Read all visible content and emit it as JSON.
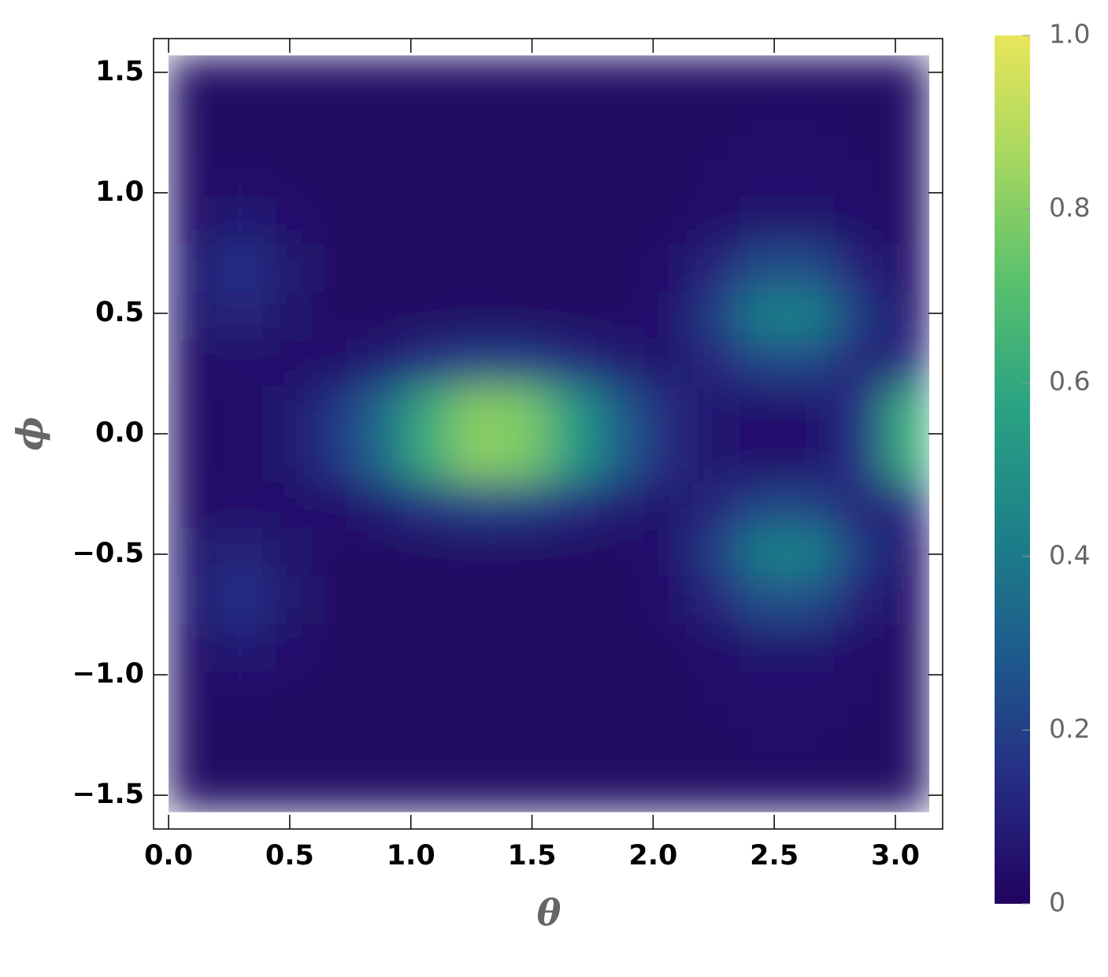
{
  "chart_data": {
    "type": "heatmap",
    "xlabel": "θ",
    "ylabel": "ϕ",
    "xlim": [
      -0.062,
      3.195
    ],
    "ylim": [
      -1.64,
      1.64
    ],
    "xticks": [
      {
        "value": 0,
        "label": "0.0"
      },
      0.5,
      {
        "value": 1,
        "label": "1.0"
      },
      1.5,
      {
        "value": 2,
        "label": "2.0"
      },
      2.5,
      {
        "value": 3,
        "label": "3.0"
      }
    ],
    "yticks": [
      {
        "value": -1.5,
        "label": "−1.5"
      },
      {
        "value": -1,
        "label": "−1.0"
      },
      {
        "value": -0.5,
        "label": "−0.5"
      },
      {
        "value": 0,
        "label": "0.0"
      },
      0.5,
      {
        "value": 1,
        "label": "1.0"
      },
      1.5
    ],
    "xbins": [
      0,
      0.2,
      0.39,
      0.59,
      0.79,
      0.98,
      1.18,
      1.37,
      1.57,
      1.77,
      1.96,
      2.16,
      2.36,
      2.55,
      2.75,
      2.95,
      3.14
    ],
    "ybins": [
      -1.57,
      -1.37,
      -1.18,
      -0.98,
      -0.79,
      -0.59,
      -0.39,
      -0.2,
      0,
      0.2,
      0.39,
      0.59,
      0.79,
      0.98,
      1.18,
      1.37,
      1.57
    ],
    "z": [
      [
        0.02,
        0.02,
        0.02,
        0.02,
        0.02,
        0.02,
        0.02,
        0.02,
        0.02,
        0.02,
        0.02,
        0.02,
        0.02,
        0.02,
        0.02,
        0.02
      ],
      [
        0.02,
        0.02,
        0.02,
        0.02,
        0.02,
        0.02,
        0.02,
        0.02,
        0.02,
        0.02,
        0.02,
        0.02,
        0.03,
        0.03,
        0.02,
        0.02
      ],
      [
        0.02,
        0.03,
        0.02,
        0.02,
        0.02,
        0.02,
        0.02,
        0.02,
        0.02,
        0.02,
        0.02,
        0.03,
        0.04,
        0.04,
        0.03,
        0.02
      ],
      [
        0.04,
        0.09,
        0.05,
        0.02,
        0.02,
        0.02,
        0.02,
        0.02,
        0.02,
        0.02,
        0.02,
        0.04,
        0.06,
        0.06,
        0.04,
        0.02
      ],
      [
        0.07,
        0.17,
        0.08,
        0.02,
        0.02,
        0.02,
        0.02,
        0.02,
        0.02,
        0.02,
        0.04,
        0.12,
        0.25,
        0.25,
        0.11,
        0.04
      ],
      [
        0.06,
        0.12,
        0.06,
        0.02,
        0.02,
        0.02,
        0.03,
        0.02,
        0.02,
        0.02,
        0.05,
        0.2,
        0.43,
        0.43,
        0.19,
        0.05
      ],
      [
        0.03,
        0.04,
        0.04,
        0.05,
        0.09,
        0.16,
        0.2,
        0.19,
        0.14,
        0.08,
        0.06,
        0.12,
        0.22,
        0.22,
        0.1,
        0.13
      ],
      [
        0.02,
        0.03,
        0.06,
        0.17,
        0.35,
        0.63,
        0.81,
        0.78,
        0.55,
        0.3,
        0.13,
        0.06,
        0.05,
        0.05,
        0.16,
        0.62
      ],
      [
        0.02,
        0.03,
        0.06,
        0.17,
        0.35,
        0.63,
        0.81,
        0.78,
        0.55,
        0.3,
        0.13,
        0.06,
        0.05,
        0.05,
        0.16,
        0.62
      ],
      [
        0.03,
        0.04,
        0.04,
        0.05,
        0.09,
        0.16,
        0.2,
        0.19,
        0.14,
        0.08,
        0.06,
        0.12,
        0.22,
        0.22,
        0.1,
        0.13
      ],
      [
        0.06,
        0.12,
        0.06,
        0.02,
        0.02,
        0.02,
        0.03,
        0.02,
        0.02,
        0.02,
        0.05,
        0.2,
        0.43,
        0.43,
        0.19,
        0.05
      ],
      [
        0.07,
        0.17,
        0.08,
        0.02,
        0.02,
        0.02,
        0.02,
        0.02,
        0.02,
        0.02,
        0.04,
        0.12,
        0.25,
        0.25,
        0.11,
        0.04
      ],
      [
        0.04,
        0.09,
        0.05,
        0.02,
        0.02,
        0.02,
        0.02,
        0.02,
        0.02,
        0.02,
        0.02,
        0.04,
        0.06,
        0.06,
        0.04,
        0.02
      ],
      [
        0.02,
        0.03,
        0.02,
        0.02,
        0.02,
        0.02,
        0.02,
        0.02,
        0.02,
        0.02,
        0.02,
        0.03,
        0.04,
        0.04,
        0.03,
        0.02
      ],
      [
        0.02,
        0.02,
        0.02,
        0.02,
        0.02,
        0.02,
        0.02,
        0.02,
        0.02,
        0.02,
        0.02,
        0.02,
        0.03,
        0.03,
        0.02,
        0.02
      ],
      [
        0.02,
        0.02,
        0.02,
        0.02,
        0.02,
        0.02,
        0.02,
        0.02,
        0.02,
        0.02,
        0.02,
        0.02,
        0.02,
        0.02,
        0.02,
        0.02
      ]
    ],
    "zlim": [
      0,
      1
    ],
    "zticks": [
      0,
      0.2,
      0.4,
      0.6,
      0.8,
      {
        "value": 1,
        "label": "1.0"
      }
    ],
    "colors": [
      "#210260",
      "#262d84",
      "#1e5a8c",
      "#1d8189",
      "#2aa283",
      "#58c06d",
      "#a5d760",
      "#e8e65a"
    ]
  }
}
